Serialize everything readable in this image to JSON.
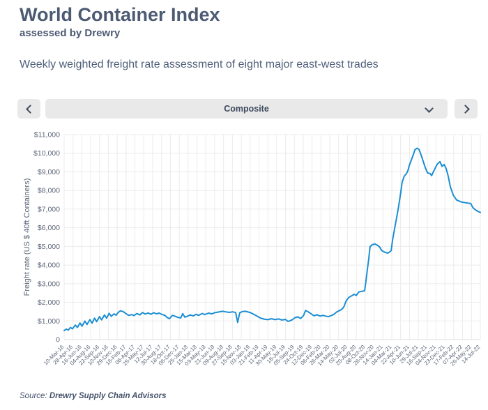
{
  "header": {
    "title": "World Container Index",
    "subtitle": "assessed by Drewry"
  },
  "description": "Weekly weighted freight rate assessment of eight major east-west trades",
  "selector": {
    "value": "Composite",
    "prev_icon": "chevron-left",
    "next_icon": "chevron-right",
    "open_icon": "chevron-down"
  },
  "footer": {
    "source_prefix": "Source:",
    "source_name": "Drewry Supply Chain Advisors"
  },
  "chart_data": {
    "type": "line",
    "title": "",
    "xlabel": "",
    "ylabel": "Freight rate (US $ 40ft Containers)",
    "ylim": [
      0,
      11000
    ],
    "y_step": 1000,
    "grid": true,
    "legend": "none",
    "colors": {
      "line": "#1b8ed3",
      "grid": "#ebebeb",
      "axis": "#d9dcdf",
      "tick_text": "#5a6477"
    },
    "y_tick_labels": [
      "0",
      "$1,000",
      "$2,000",
      "$3,000",
      "$4,000",
      "$5,000",
      "$6,000",
      "$7,000",
      "$8,000",
      "$9,000",
      "$10,000",
      "$11,000"
    ],
    "x_tick_labels": [
      "10-Mar-16",
      "28-Apr-16",
      "16-Jun-16",
      "04-Aug-16",
      "22-Sep-16",
      "10-Nov-16",
      "29-Dec-16",
      "16-Feb-17",
      "06-Apr-17",
      "25-May-17",
      "12-Jul-17",
      "30-Aug-17",
      "18-Oct-17",
      "06-Dec-17",
      "25-Jan-18",
      "15-Mar-18",
      "03-May-18",
      "21-Jun-18",
      "09-Aug-18",
      "27-Sep-18",
      "15-Nov-18",
      "03-Jan-19",
      "21-Feb-19",
      "11-Apr-19",
      "30-May-19",
      "18-Jul-19",
      "05-Sep-19",
      "24-Oct-19",
      "12-Dec-19",
      "06-Feb-20",
      "26-Mar-20",
      "14-May-20",
      "02-Jul-20",
      "20-Aug-20",
      "08-Oct-20",
      "26-Nov-20",
      "14-Jan-21",
      "04-Mar-21",
      "22-Apr-21",
      "10-Jun-21",
      "29-Jul-21",
      "16-Sep-21",
      "04-Nov-21",
      "23-Dec-21",
      "17-Feb-22",
      "07-Apr-22",
      "26-May-22",
      "14-Jul-22"
    ],
    "series": [
      {
        "name": "Composite",
        "points": [
          [
            0,
            480
          ],
          [
            0.005,
            560
          ],
          [
            0.01,
            510
          ],
          [
            0.015,
            650
          ],
          [
            0.02,
            580
          ],
          [
            0.027,
            780
          ],
          [
            0.032,
            650
          ],
          [
            0.038,
            890
          ],
          [
            0.043,
            720
          ],
          [
            0.05,
            990
          ],
          [
            0.055,
            810
          ],
          [
            0.062,
            1070
          ],
          [
            0.067,
            880
          ],
          [
            0.073,
            1150
          ],
          [
            0.078,
            960
          ],
          [
            0.085,
            1230
          ],
          [
            0.09,
            1060
          ],
          [
            0.097,
            1320
          ],
          [
            0.102,
            1150
          ],
          [
            0.108,
            1410
          ],
          [
            0.113,
            1250
          ],
          [
            0.12,
            1380
          ],
          [
            0.125,
            1310
          ],
          [
            0.13,
            1460
          ],
          [
            0.135,
            1540
          ],
          [
            0.142,
            1500
          ],
          [
            0.148,
            1400
          ],
          [
            0.155,
            1300
          ],
          [
            0.162,
            1340
          ],
          [
            0.168,
            1290
          ],
          [
            0.175,
            1400
          ],
          [
            0.182,
            1320
          ],
          [
            0.188,
            1450
          ],
          [
            0.195,
            1370
          ],
          [
            0.202,
            1430
          ],
          [
            0.208,
            1360
          ],
          [
            0.215,
            1440
          ],
          [
            0.222,
            1380
          ],
          [
            0.228,
            1420
          ],
          [
            0.235,
            1350
          ],
          [
            0.242,
            1300
          ],
          [
            0.248,
            1180
          ],
          [
            0.253,
            1120
          ],
          [
            0.26,
            1300
          ],
          [
            0.267,
            1250
          ],
          [
            0.273,
            1190
          ],
          [
            0.28,
            1160
          ],
          [
            0.285,
            1390
          ],
          [
            0.29,
            1200
          ],
          [
            0.297,
            1260
          ],
          [
            0.303,
            1320
          ],
          [
            0.31,
            1270
          ],
          [
            0.317,
            1360
          ],
          [
            0.323,
            1300
          ],
          [
            0.332,
            1400
          ],
          [
            0.338,
            1340
          ],
          [
            0.347,
            1420
          ],
          [
            0.355,
            1380
          ],
          [
            0.363,
            1450
          ],
          [
            0.372,
            1480
          ],
          [
            0.38,
            1520
          ],
          [
            0.388,
            1490
          ],
          [
            0.397,
            1460
          ],
          [
            0.405,
            1490
          ],
          [
            0.412,
            1450
          ],
          [
            0.417,
            920
          ],
          [
            0.422,
            1440
          ],
          [
            0.428,
            1500
          ],
          [
            0.435,
            1520
          ],
          [
            0.442,
            1480
          ],
          [
            0.448,
            1440
          ],
          [
            0.457,
            1340
          ],
          [
            0.465,
            1240
          ],
          [
            0.473,
            1140
          ],
          [
            0.482,
            1090
          ],
          [
            0.49,
            1070
          ],
          [
            0.498,
            1120
          ],
          [
            0.507,
            1070
          ],
          [
            0.515,
            1110
          ],
          [
            0.523,
            1050
          ],
          [
            0.532,
            1080
          ],
          [
            0.538,
            970
          ],
          [
            0.547,
            1050
          ],
          [
            0.555,
            1180
          ],
          [
            0.562,
            1220
          ],
          [
            0.568,
            1130
          ],
          [
            0.575,
            1280
          ],
          [
            0.58,
            1560
          ],
          [
            0.587,
            1480
          ],
          [
            0.593,
            1390
          ],
          [
            0.6,
            1280
          ],
          [
            0.608,
            1330
          ],
          [
            0.615,
            1260
          ],
          [
            0.622,
            1300
          ],
          [
            0.628,
            1260
          ],
          [
            0.635,
            1230
          ],
          [
            0.642,
            1290
          ],
          [
            0.648,
            1350
          ],
          [
            0.655,
            1480
          ],
          [
            0.662,
            1560
          ],
          [
            0.667,
            1620
          ],
          [
            0.672,
            1750
          ],
          [
            0.678,
            2100
          ],
          [
            0.685,
            2280
          ],
          [
            0.692,
            2360
          ],
          [
            0.697,
            2430
          ],
          [
            0.702,
            2370
          ],
          [
            0.708,
            2550
          ],
          [
            0.715,
            2590
          ],
          [
            0.722,
            2620
          ],
          [
            0.725,
            3100
          ],
          [
            0.728,
            3650
          ],
          [
            0.732,
            4350
          ],
          [
            0.735,
            4980
          ],
          [
            0.74,
            5090
          ],
          [
            0.747,
            5130
          ],
          [
            0.753,
            5060
          ],
          [
            0.758,
            4970
          ],
          [
            0.763,
            4780
          ],
          [
            0.77,
            4690
          ],
          [
            0.777,
            4640
          ],
          [
            0.782,
            4700
          ],
          [
            0.786,
            4780
          ],
          [
            0.789,
            5320
          ],
          [
            0.794,
            5950
          ],
          [
            0.799,
            6550
          ],
          [
            0.804,
            7190
          ],
          [
            0.809,
            7940
          ],
          [
            0.812,
            8430
          ],
          [
            0.817,
            8760
          ],
          [
            0.822,
            8890
          ],
          [
            0.826,
            9060
          ],
          [
            0.829,
            9320
          ],
          [
            0.834,
            9620
          ],
          [
            0.839,
            9930
          ],
          [
            0.843,
            10190
          ],
          [
            0.848,
            10270
          ],
          [
            0.853,
            10190
          ],
          [
            0.858,
            9890
          ],
          [
            0.863,
            9550
          ],
          [
            0.868,
            9210
          ],
          [
            0.873,
            8950
          ],
          [
            0.879,
            8910
          ],
          [
            0.883,
            8800
          ],
          [
            0.886,
            8950
          ],
          [
            0.891,
            9170
          ],
          [
            0.896,
            9400
          ],
          [
            0.903,
            9550
          ],
          [
            0.908,
            9290
          ],
          [
            0.913,
            9400
          ],
          [
            0.918,
            9170
          ],
          [
            0.923,
            8760
          ],
          [
            0.928,
            8200
          ],
          [
            0.935,
            7750
          ],
          [
            0.943,
            7490
          ],
          [
            0.955,
            7380
          ],
          [
            0.965,
            7340
          ],
          [
            0.977,
            7300
          ],
          [
            0.982,
            7080
          ],
          [
            0.99,
            6930
          ],
          [
            0.997,
            6850
          ],
          [
            1,
            6820
          ]
        ]
      }
    ]
  }
}
